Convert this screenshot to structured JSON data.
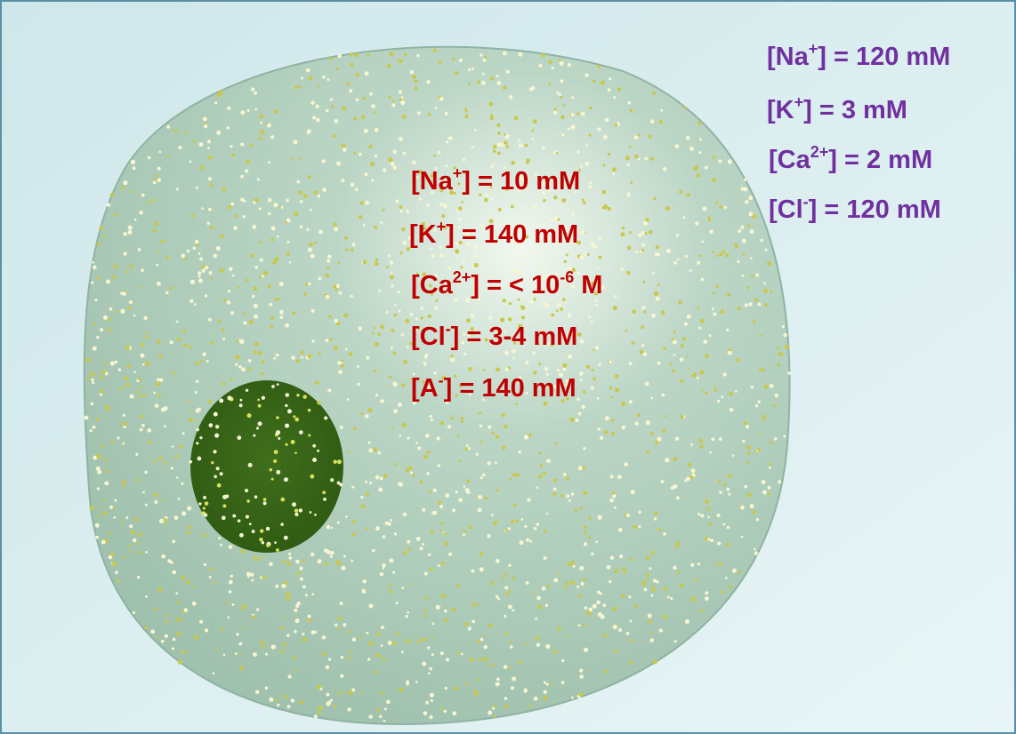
{
  "intracellular": [
    [
      {
        "text": "[Na"
      },
      {
        "sup": "+"
      },
      {
        "text": "] = 10 mM"
      }
    ],
    [
      {
        "text": "[K"
      },
      {
        "sup": "+"
      },
      {
        "text": "] = 140 mM"
      }
    ],
    [
      {
        "text": "[Ca"
      },
      {
        "sup": "2+"
      },
      {
        "text": "] = < 10"
      },
      {
        "sup": "-6"
      },
      {
        "text": " M"
      }
    ],
    [
      {
        "text": "[Cl"
      },
      {
        "sup": "-"
      },
      {
        "text": "] = 3-4 mM"
      }
    ],
    [
      {
        "text": "[A"
      },
      {
        "sup": "-"
      },
      {
        "text": "] = 140 mM"
      }
    ]
  ],
  "extracellular": [
    [
      {
        "text": "[Na"
      },
      {
        "sup": "+"
      },
      {
        "text": "] = 120 mM"
      }
    ],
    [
      {
        "text": "[K"
      },
      {
        "sup": "+"
      },
      {
        "text": "] = 3 mM"
      }
    ],
    [
      {
        "text": "[Ca"
      },
      {
        "sup": "2+"
      },
      {
        "text": "] = 2 mM"
      }
    ],
    [
      {
        "text": "[Cl"
      },
      {
        "sup": "-"
      },
      {
        "text": "] = 120 mM"
      }
    ]
  ]
}
